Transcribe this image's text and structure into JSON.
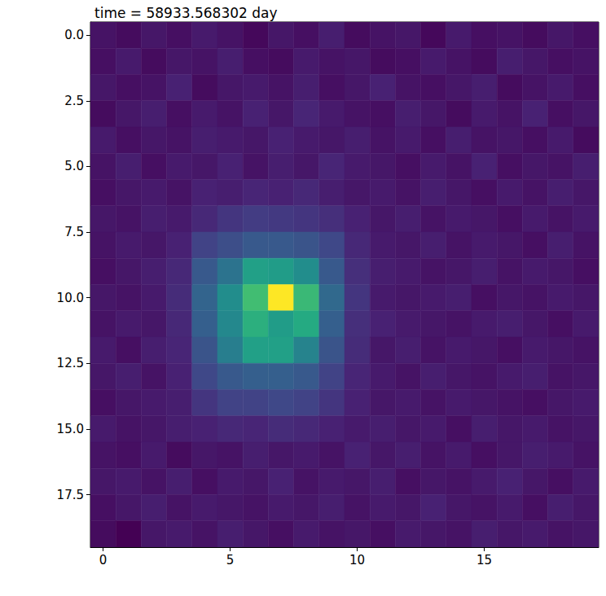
{
  "chart_data": {
    "type": "heatmap",
    "title": "time = 58933.568302 day",
    "xlim": [
      -0.5,
      19.5
    ],
    "xticks": [
      0,
      5,
      10,
      15
    ],
    "ylim": [
      19.5,
      -0.5
    ],
    "yticks": [
      {
        "value": 0,
        "label": "0.0"
      },
      2.5,
      {
        "value": 5,
        "label": "5.0"
      },
      7.5,
      {
        "value": 10,
        "label": "10.0"
      },
      12.5,
      {
        "value": 15,
        "label": "15.0"
      },
      17.5
    ],
    "grid": false,
    "zlim": [
      3,
      100
    ],
    "cells": [
      [
        8,
        6,
        9,
        7,
        10,
        8,
        5,
        9,
        7,
        11,
        6,
        8,
        9,
        5,
        10,
        7,
        8,
        6,
        9,
        7
      ],
      [
        7,
        10,
        6,
        9,
        8,
        11,
        7,
        6,
        10,
        8,
        9,
        6,
        7,
        10,
        8,
        6,
        11,
        9,
        7,
        8
      ],
      [
        9,
        7,
        8,
        12,
        6,
        9,
        10,
        8,
        11,
        7,
        9,
        12,
        8,
        7,
        9,
        11,
        6,
        8,
        10,
        7
      ],
      [
        6,
        9,
        11,
        7,
        10,
        8,
        12,
        9,
        13,
        10,
        8,
        7,
        11,
        9,
        6,
        10,
        8,
        12,
        7,
        9
      ],
      [
        10,
        7,
        9,
        8,
        11,
        10,
        9,
        12,
        10,
        9,
        11,
        8,
        10,
        7,
        11,
        8,
        9,
        7,
        10,
        6
      ],
      [
        8,
        11,
        7,
        10,
        9,
        12,
        8,
        11,
        9,
        13,
        10,
        9,
        7,
        10,
        8,
        12,
        7,
        9,
        8,
        11
      ],
      [
        7,
        9,
        10,
        8,
        12,
        11,
        13,
        12,
        14,
        11,
        9,
        10,
        8,
        11,
        9,
        7,
        10,
        8,
        11,
        9
      ],
      [
        9,
        8,
        11,
        10,
        14,
        18,
        20,
        19,
        18,
        16,
        12,
        9,
        11,
        8,
        10,
        9,
        7,
        10,
        8,
        10
      ],
      [
        8,
        10,
        9,
        12,
        22,
        26,
        30,
        30,
        28,
        24,
        14,
        10,
        9,
        11,
        8,
        10,
        9,
        7,
        11,
        8
      ],
      [
        7,
        9,
        11,
        14,
        30,
        40,
        58,
        56,
        50,
        30,
        16,
        11,
        10,
        8,
        9,
        11,
        8,
        10,
        9,
        7
      ],
      [
        9,
        8,
        10,
        15,
        34,
        50,
        70,
        100,
        68,
        36,
        18,
        10,
        9,
        10,
        11,
        7,
        9,
        8,
        10,
        9
      ],
      [
        8,
        10,
        9,
        14,
        32,
        48,
        64,
        56,
        62,
        32,
        16,
        12,
        10,
        9,
        8,
        10,
        11,
        9,
        7,
        10
      ],
      [
        10,
        7,
        11,
        13,
        28,
        44,
        58,
        58,
        46,
        28,
        15,
        9,
        11,
        8,
        10,
        9,
        7,
        10,
        9,
        8
      ],
      [
        9,
        11,
        8,
        12,
        24,
        30,
        32,
        32,
        30,
        22,
        13,
        10,
        8,
        11,
        9,
        8,
        10,
        11,
        8,
        9
      ],
      [
        7,
        9,
        10,
        11,
        18,
        22,
        22,
        24,
        22,
        18,
        12,
        9,
        10,
        8,
        10,
        9,
        8,
        7,
        9,
        10
      ],
      [
        10,
        8,
        9,
        11,
        12,
        14,
        13,
        15,
        14,
        12,
        10,
        11,
        9,
        10,
        7,
        11,
        9,
        10,
        8,
        9
      ],
      [
        8,
        7,
        10,
        6,
        9,
        8,
        11,
        9,
        10,
        8,
        12,
        9,
        11,
        8,
        10,
        7,
        9,
        11,
        10,
        8
      ],
      [
        9,
        10,
        8,
        11,
        7,
        10,
        9,
        12,
        8,
        10,
        9,
        11,
        7,
        9,
        8,
        10,
        12,
        9,
        7,
        10
      ],
      [
        7,
        9,
        11,
        8,
        10,
        9,
        8,
        10,
        9,
        11,
        8,
        10,
        9,
        12,
        9,
        8,
        10,
        7,
        11,
        9
      ],
      [
        6,
        3,
        9,
        10,
        8,
        11,
        9,
        7,
        10,
        8,
        9,
        7,
        10,
        9,
        8,
        11,
        9,
        10,
        8,
        9
      ]
    ]
  }
}
